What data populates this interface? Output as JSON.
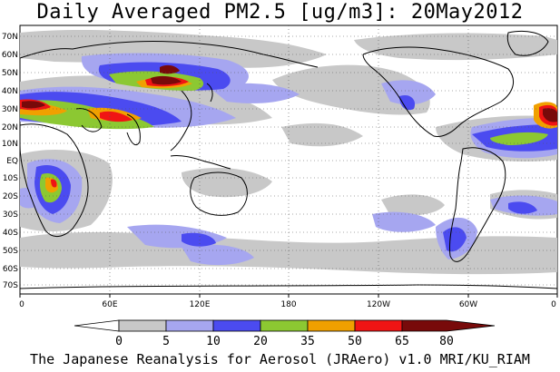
{
  "title": "Daily Averaged PM2.5 [ug/m3]: 20May2012",
  "footer": "The Japanese Reanalysis for Aerosol (JRAero) v1.0 MRI/KU_RIAM",
  "lat_labels": [
    "70N",
    "60N",
    "50N",
    "40N",
    "30N",
    "20N",
    "10N",
    "EQ",
    "10S",
    "20S",
    "30S",
    "40S",
    "50S",
    "60S",
    "70S"
  ],
  "lon_labels": [
    "0",
    "60E",
    "120E",
    "180",
    "120W",
    "60W",
    "0"
  ],
  "colorbar": {
    "ticks": [
      "0",
      "5",
      "10",
      "20",
      "35",
      "50",
      "65",
      "80"
    ],
    "colors": [
      "#ffffff",
      "#c8c8c8",
      "#a6a6f0",
      "#4b4bf0",
      "#8cc832",
      "#f0a000",
      "#f01414",
      "#780a0a"
    ]
  },
  "colors": {
    "low": "#c8c8c8",
    "light_blue": "#a6a6f0",
    "blue": "#4b4bf0",
    "green": "#8cc832",
    "orange": "#f0a000",
    "red": "#f01414",
    "darkred": "#780a0a"
  }
}
